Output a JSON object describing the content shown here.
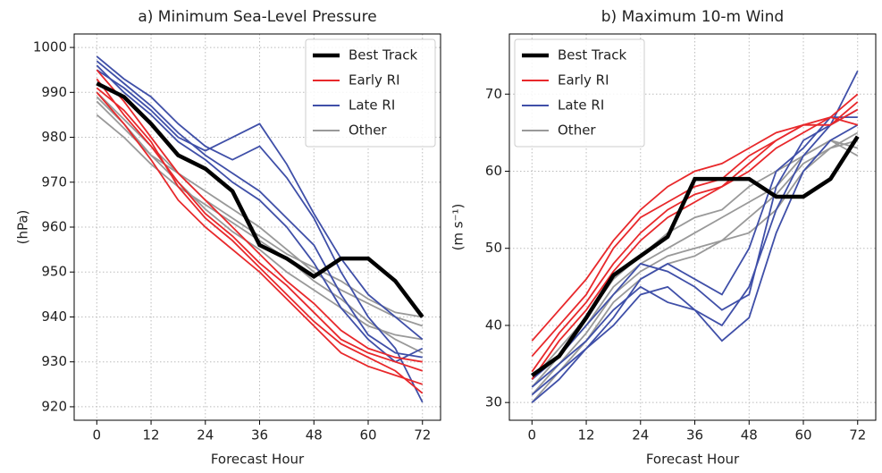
{
  "chart_data": [
    {
      "type": "line",
      "title": "a) Minimum Sea-Level Pressure",
      "x_label": "Forecast Hour",
      "y_label": "(hPa)",
      "x": [
        0,
        6,
        12,
        18,
        24,
        30,
        36,
        42,
        48,
        54,
        60,
        66,
        72
      ],
      "xlim": [
        -5,
        76
      ],
      "ylim": [
        917,
        1003
      ],
      "xticks": [
        0,
        12,
        24,
        36,
        48,
        60,
        72
      ],
      "yticks": [
        920,
        930,
        940,
        950,
        960,
        970,
        980,
        990,
        1000
      ],
      "grid": true,
      "legend": "upper right",
      "series": [
        {
          "name": "Best Track",
          "color": "#000000",
          "values": [
            992,
            989,
            983,
            976,
            973,
            968,
            956,
            953,
            949,
            953,
            953,
            948,
            940
          ]
        },
        {
          "name": "Early RI",
          "color": "#e8282b",
          "members": [
            [
              993,
              985,
              978,
              970,
              963,
              958,
              952,
              947,
              941,
              935,
              932,
              930,
              928
            ],
            [
              990,
              983,
              975,
              966,
              960,
              955,
              950,
              944,
              938,
              932,
              929,
              927,
              925
            ],
            [
              995,
              988,
              980,
              972,
              966,
              960,
              954,
              948,
              943,
              937,
              933,
              931,
              930
            ],
            [
              991,
              986,
              979,
              969,
              962,
              957,
              951,
              945,
              939,
              934,
              931,
              928,
              923
            ]
          ]
        },
        {
          "name": "Late RI",
          "color": "#3f4fa8",
          "members": [
            [
              997,
              992,
              987,
              981,
              976,
              972,
              968,
              962,
              956,
              945,
              936,
              932,
              931
            ],
            [
              998,
              993,
              989,
              983,
              978,
              975,
              978,
              971,
              962,
              950,
              940,
              933,
              921
            ],
            [
              996,
              990,
              985,
              979,
              975,
              970,
              966,
              960,
              952,
              942,
              935,
              930,
              933
            ],
            [
              995,
              991,
              986,
              980,
              977,
              980,
              983,
              974,
              963,
              953,
              945,
              940,
              935
            ]
          ]
        },
        {
          "name": "Other",
          "color": "#999999",
          "members": [
            [
              988,
              982,
              976,
              972,
              968,
              964,
              960,
              955,
              950,
              946,
              943,
              940,
              938
            ],
            [
              985,
              980,
              974,
              969,
              965,
              961,
              957,
              953,
              948,
              944,
              939,
              935,
              932
            ],
            [
              990,
              984,
              978,
              972,
              966,
              962,
              958,
              954,
              951,
              948,
              944,
              941,
              940
            ],
            [
              989,
              983,
              976,
              970,
              964,
              959,
              955,
              950,
              946,
              942,
              938,
              936,
              935
            ]
          ]
        }
      ]
    },
    {
      "type": "line",
      "title": "b) Maximum 10-m Wind",
      "x_label": "Forecast Hour",
      "y_label": "(m s⁻¹)",
      "x": [
        0,
        6,
        12,
        18,
        24,
        30,
        36,
        42,
        48,
        54,
        60,
        66,
        72
      ],
      "xlim": [
        -5,
        76
      ],
      "ylim": [
        27.7,
        77.8
      ],
      "xticks": [
        0,
        12,
        24,
        36,
        48,
        60,
        72
      ],
      "yticks": [
        30,
        40,
        50,
        60,
        70
      ],
      "grid": true,
      "legend": "upper left",
      "series": [
        {
          "name": "Best Track",
          "color": "#000000",
          "values": [
            33.5,
            36,
            41,
            46.5,
            49,
            51.5,
            59,
            59,
            59,
            56.7,
            56.7,
            59,
            64.5
          ]
        },
        {
          "name": "Early RI",
          "color": "#e8282b",
          "members": [
            [
              36,
              40,
              44,
              50,
              54,
              56,
              58,
              59,
              62,
              64,
              66,
              66,
              68
            ],
            [
              34,
              39,
              43,
              48,
              52,
              55,
              57,
              58,
              60,
              63,
              65,
              67,
              66
            ],
            [
              38,
              42,
              46,
              51,
              55,
              58,
              60,
              61,
              63,
              65,
              66,
              67,
              70
            ],
            [
              33,
              38,
              42,
              47,
              51,
              54,
              56,
              58,
              61,
              64,
              66,
              66,
              69
            ]
          ]
        },
        {
          "name": "Late RI",
          "color": "#3f4fa8",
          "members": [
            [
              32,
              35,
              38,
              42,
              45,
              43,
              42,
              40,
              45,
              55,
              62,
              66,
              73
            ],
            [
              31,
              34,
              37,
              40,
              44,
              45,
              42,
              38,
              41,
              52,
              60,
              64,
              66
            ],
            [
              33,
              36,
              40,
              44,
              48,
              47,
              45,
              42,
              44,
              58,
              64,
              66,
              68
            ],
            [
              30,
              33,
              37,
              41,
              46,
              48,
              46,
              44,
              50,
              60,
              63,
              67,
              67
            ]
          ]
        },
        {
          "name": "Other",
          "color": "#999999",
          "members": [
            [
              32,
              36,
              40,
              45,
              48,
              50,
              52,
              54,
              56,
              58,
              62,
              64,
              63
            ],
            [
              31,
              35,
              39,
              44,
              47,
              49,
              50,
              51,
              52,
              55,
              60,
              63,
              65
            ],
            [
              33,
              37,
              41,
              46,
              49,
              52,
              54,
              55,
              58,
              60,
              62,
              64,
              62
            ],
            [
              30,
              34,
              38,
              43,
              46,
              48,
              49,
              51,
              54,
              57,
              61,
              63,
              64
            ]
          ]
        }
      ]
    }
  ]
}
